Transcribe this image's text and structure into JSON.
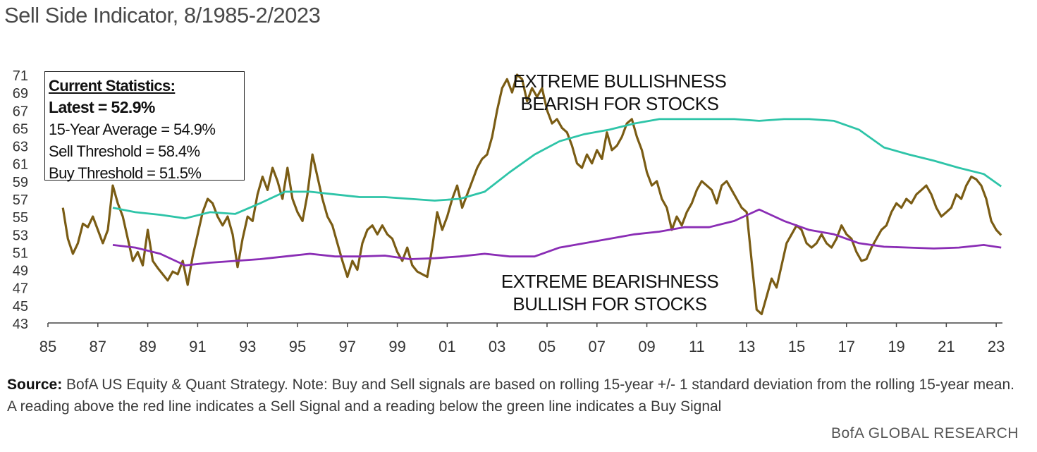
{
  "chart_data": {
    "type": "line",
    "title": "Sell Side Indicator, 8/1985-2/2023",
    "xlabel": "",
    "ylabel": "",
    "xlim": [
      1985.0,
      2023.25
    ],
    "ylim": [
      43,
      71
    ],
    "x_ticks": [
      "85",
      "87",
      "89",
      "91",
      "93",
      "95",
      "97",
      "99",
      "01",
      "03",
      "05",
      "07",
      "09",
      "11",
      "13",
      "15",
      "17",
      "19",
      "21",
      "23"
    ],
    "y_ticks": [
      "71",
      "69",
      "67",
      "65",
      "63",
      "61",
      "59",
      "57",
      "55",
      "53",
      "51",
      "49",
      "47",
      "45",
      "43"
    ],
    "grid": false,
    "series": [
      {
        "color": "#7a5c14",
        "points": [
          [
            1985.6,
            56.0
          ],
          [
            1985.8,
            52.5
          ],
          [
            1986.0,
            50.8
          ],
          [
            1986.2,
            52.0
          ],
          [
            1986.4,
            54.2
          ],
          [
            1986.6,
            53.8
          ],
          [
            1986.8,
            55.0
          ],
          [
            1987.0,
            53.5
          ],
          [
            1987.2,
            52.0
          ],
          [
            1987.4,
            53.5
          ],
          [
            1987.6,
            58.5
          ],
          [
            1987.8,
            56.5
          ],
          [
            1988.0,
            55.0
          ],
          [
            1988.2,
            52.5
          ],
          [
            1988.4,
            50.0
          ],
          [
            1988.6,
            51.0
          ],
          [
            1988.8,
            49.5
          ],
          [
            1989.0,
            53.5
          ],
          [
            1989.2,
            50.0
          ],
          [
            1989.4,
            49.2
          ],
          [
            1989.6,
            48.5
          ],
          [
            1989.8,
            47.8
          ],
          [
            1990.0,
            48.8
          ],
          [
            1990.2,
            48.5
          ],
          [
            1990.4,
            50.0
          ],
          [
            1990.6,
            47.3
          ],
          [
            1990.8,
            50.5
          ],
          [
            1991.0,
            53.0
          ],
          [
            1991.2,
            55.5
          ],
          [
            1991.4,
            57.0
          ],
          [
            1991.6,
            56.5
          ],
          [
            1991.8,
            55.0
          ],
          [
            1992.0,
            54.0
          ],
          [
            1992.2,
            55.0
          ],
          [
            1992.4,
            53.0
          ],
          [
            1992.6,
            49.3
          ],
          [
            1992.8,
            52.5
          ],
          [
            1993.0,
            55.0
          ],
          [
            1993.2,
            54.5
          ],
          [
            1993.4,
            57.5
          ],
          [
            1993.6,
            59.5
          ],
          [
            1993.8,
            58.0
          ],
          [
            1994.0,
            60.5
          ],
          [
            1994.2,
            59.0
          ],
          [
            1994.4,
            57.0
          ],
          [
            1994.6,
            60.5
          ],
          [
            1994.8,
            57.0
          ],
          [
            1995.0,
            55.5
          ],
          [
            1995.2,
            54.5
          ],
          [
            1995.4,
            57.5
          ],
          [
            1995.6,
            62.0
          ],
          [
            1995.8,
            59.5
          ],
          [
            1996.0,
            57.0
          ],
          [
            1996.2,
            55.0
          ],
          [
            1996.4,
            54.0
          ],
          [
            1996.6,
            52.0
          ],
          [
            1996.8,
            50.0
          ],
          [
            1997.0,
            48.2
          ],
          [
            1997.2,
            50.0
          ],
          [
            1997.4,
            49.0
          ],
          [
            1997.6,
            52.0
          ],
          [
            1997.8,
            53.5
          ],
          [
            1998.0,
            54.0
          ],
          [
            1998.2,
            53.0
          ],
          [
            1998.4,
            54.0
          ],
          [
            1998.6,
            53.0
          ],
          [
            1998.8,
            52.5
          ],
          [
            1999.0,
            51.0
          ],
          [
            1999.2,
            50.0
          ],
          [
            1999.4,
            51.5
          ],
          [
            1999.6,
            49.5
          ],
          [
            1999.8,
            48.8
          ],
          [
            2000.0,
            48.5
          ],
          [
            2000.2,
            48.2
          ],
          [
            2000.4,
            51.5
          ],
          [
            2000.6,
            55.5
          ],
          [
            2000.8,
            53.5
          ],
          [
            2001.0,
            55.0
          ],
          [
            2001.2,
            57.0
          ],
          [
            2001.4,
            58.5
          ],
          [
            2001.6,
            56.0
          ],
          [
            2001.8,
            57.5
          ],
          [
            2002.0,
            59.0
          ],
          [
            2002.2,
            60.5
          ],
          [
            2002.4,
            61.5
          ],
          [
            2002.6,
            62.0
          ],
          [
            2002.8,
            64.0
          ],
          [
            2003.0,
            67.0
          ],
          [
            2003.2,
            69.5
          ],
          [
            2003.4,
            70.5
          ],
          [
            2003.6,
            69.0
          ],
          [
            2003.8,
            71.0
          ],
          [
            2004.0,
            70.5
          ],
          [
            2004.2,
            68.0
          ],
          [
            2004.4,
            69.5
          ],
          [
            2004.6,
            68.5
          ],
          [
            2004.8,
            69.5
          ],
          [
            2005.0,
            67.0
          ],
          [
            2005.2,
            65.5
          ],
          [
            2005.4,
            66.0
          ],
          [
            2005.6,
            65.0
          ],
          [
            2005.8,
            64.5
          ],
          [
            2006.0,
            63.0
          ],
          [
            2006.2,
            61.0
          ],
          [
            2006.4,
            60.5
          ],
          [
            2006.6,
            62.0
          ],
          [
            2006.8,
            61.0
          ],
          [
            2007.0,
            62.5
          ],
          [
            2007.2,
            61.5
          ],
          [
            2007.4,
            64.5
          ],
          [
            2007.6,
            62.5
          ],
          [
            2007.8,
            63.0
          ],
          [
            2008.0,
            64.0
          ],
          [
            2008.2,
            65.5
          ],
          [
            2008.4,
            66.0
          ],
          [
            2008.6,
            64.0
          ],
          [
            2008.8,
            62.5
          ],
          [
            2009.0,
            60.0
          ],
          [
            2009.2,
            58.5
          ],
          [
            2009.4,
            59.0
          ],
          [
            2009.6,
            57.0
          ],
          [
            2009.8,
            56.0
          ],
          [
            2010.0,
            53.5
          ],
          [
            2010.2,
            55.0
          ],
          [
            2010.4,
            54.0
          ],
          [
            2010.6,
            55.5
          ],
          [
            2010.8,
            56.5
          ],
          [
            2011.0,
            58.0
          ],
          [
            2011.2,
            59.0
          ],
          [
            2011.4,
            58.5
          ],
          [
            2011.6,
            58.0
          ],
          [
            2011.8,
            56.5
          ],
          [
            2012.0,
            58.5
          ],
          [
            2012.2,
            59.0
          ],
          [
            2012.4,
            58.0
          ],
          [
            2012.6,
            57.0
          ],
          [
            2012.8,
            56.0
          ],
          [
            2013.0,
            55.5
          ],
          [
            2013.2,
            50.0
          ],
          [
            2013.4,
            44.5
          ],
          [
            2013.6,
            44.0
          ],
          [
            2013.8,
            46.0
          ],
          [
            2014.0,
            48.0
          ],
          [
            2014.2,
            47.0
          ],
          [
            2014.4,
            49.5
          ],
          [
            2014.6,
            52.0
          ],
          [
            2014.8,
            53.0
          ],
          [
            2015.0,
            54.0
          ],
          [
            2015.2,
            53.5
          ],
          [
            2015.4,
            52.0
          ],
          [
            2015.6,
            51.5
          ],
          [
            2015.8,
            52.0
          ],
          [
            2016.0,
            53.0
          ],
          [
            2016.2,
            52.0
          ],
          [
            2016.4,
            51.5
          ],
          [
            2016.6,
            52.5
          ],
          [
            2016.8,
            54.0
          ],
          [
            2017.0,
            53.0
          ],
          [
            2017.2,
            52.5
          ],
          [
            2017.4,
            51.0
          ],
          [
            2017.6,
            50.0
          ],
          [
            2017.8,
            50.2
          ],
          [
            2018.0,
            51.5
          ],
          [
            2018.2,
            52.5
          ],
          [
            2018.4,
            53.5
          ],
          [
            2018.6,
            54.0
          ],
          [
            2018.8,
            55.5
          ],
          [
            2019.0,
            56.5
          ],
          [
            2019.2,
            56.0
          ],
          [
            2019.4,
            57.0
          ],
          [
            2019.6,
            56.5
          ],
          [
            2019.8,
            57.5
          ],
          [
            2020.0,
            58.0
          ],
          [
            2020.2,
            58.5
          ],
          [
            2020.4,
            57.5
          ],
          [
            2020.6,
            56.0
          ],
          [
            2020.8,
            55.0
          ],
          [
            2021.0,
            55.5
          ],
          [
            2021.2,
            56.0
          ],
          [
            2021.4,
            57.5
          ],
          [
            2021.6,
            57.0
          ],
          [
            2021.8,
            58.5
          ],
          [
            2022.0,
            59.5
          ],
          [
            2022.2,
            59.2
          ],
          [
            2022.4,
            58.5
          ],
          [
            2022.6,
            57.0
          ],
          [
            2022.8,
            54.5
          ],
          [
            2023.0,
            53.5
          ],
          [
            2023.2,
            52.9
          ]
        ]
      },
      {
        "color": "#2ec4a8",
        "points": [
          [
            1987.6,
            56.0
          ],
          [
            1988.5,
            55.5
          ],
          [
            1989.5,
            55.2
          ],
          [
            1990.5,
            54.8
          ],
          [
            1991.5,
            55.5
          ],
          [
            1992.5,
            55.3
          ],
          [
            1993.5,
            56.5
          ],
          [
            1994.5,
            57.8
          ],
          [
            1995.5,
            57.8
          ],
          [
            1996.5,
            57.5
          ],
          [
            1997.5,
            57.2
          ],
          [
            1998.5,
            57.2
          ],
          [
            1999.5,
            57.0
          ],
          [
            2000.5,
            56.8
          ],
          [
            2001.5,
            57.0
          ],
          [
            2002.5,
            57.8
          ],
          [
            2003.5,
            60.0
          ],
          [
            2004.5,
            62.0
          ],
          [
            2005.5,
            63.5
          ],
          [
            2006.5,
            64.3
          ],
          [
            2007.5,
            64.8
          ],
          [
            2008.5,
            65.5
          ],
          [
            2009.5,
            66.0
          ],
          [
            2010.5,
            66.0
          ],
          [
            2011.5,
            66.0
          ],
          [
            2012.5,
            66.0
          ],
          [
            2013.5,
            65.8
          ],
          [
            2014.5,
            66.0
          ],
          [
            2015.5,
            66.0
          ],
          [
            2016.5,
            65.8
          ],
          [
            2017.5,
            64.8
          ],
          [
            2018.5,
            62.8
          ],
          [
            2019.5,
            62.0
          ],
          [
            2020.5,
            61.3
          ],
          [
            2021.5,
            60.5
          ],
          [
            2022.5,
            59.8
          ],
          [
            2023.2,
            58.4
          ]
        ]
      },
      {
        "color": "#8a2db5",
        "points": [
          [
            1987.6,
            51.8
          ],
          [
            1988.5,
            51.5
          ],
          [
            1989.5,
            50.8
          ],
          [
            1990.5,
            49.5
          ],
          [
            1991.5,
            49.8
          ],
          [
            1992.5,
            50.0
          ],
          [
            1993.5,
            50.2
          ],
          [
            1994.5,
            50.5
          ],
          [
            1995.5,
            50.8
          ],
          [
            1996.5,
            50.5
          ],
          [
            1997.5,
            50.5
          ],
          [
            1998.5,
            50.6
          ],
          [
            1999.5,
            50.2
          ],
          [
            2000.5,
            50.3
          ],
          [
            2001.5,
            50.5
          ],
          [
            2002.5,
            50.8
          ],
          [
            2003.5,
            50.5
          ],
          [
            2004.5,
            50.5
          ],
          [
            2005.5,
            51.5
          ],
          [
            2006.5,
            52.0
          ],
          [
            2007.5,
            52.5
          ],
          [
            2008.5,
            53.0
          ],
          [
            2009.5,
            53.3
          ],
          [
            2010.5,
            53.8
          ],
          [
            2011.5,
            53.8
          ],
          [
            2012.5,
            54.5
          ],
          [
            2013.5,
            55.8
          ],
          [
            2014.5,
            54.5
          ],
          [
            2015.5,
            53.5
          ],
          [
            2016.5,
            53.0
          ],
          [
            2017.5,
            52.0
          ],
          [
            2018.5,
            51.6
          ],
          [
            2019.5,
            51.5
          ],
          [
            2020.5,
            51.4
          ],
          [
            2021.5,
            51.5
          ],
          [
            2022.5,
            51.8
          ],
          [
            2023.2,
            51.5
          ]
        ]
      }
    ]
  },
  "stats": {
    "heading": "Current Statistics:",
    "latest": "Latest = 52.9%",
    "avg": "15-Year Average = 54.9%",
    "sell": "Sell Threshold = 58.4%",
    "buy": "Buy Threshold = 51.5%"
  },
  "annotations": {
    "bull_1": "EXTREME BULLISHNESS",
    "bull_2": "BEARISH FOR STOCKS",
    "bear_1": "EXTREME BEARISHNESS",
    "bear_2": "BULLISH FOR STOCKS"
  },
  "footer": {
    "source_label": "Source:",
    "source_text": " BofA US Equity & Quant Strategy. Note: Buy and Sell signals are based on rolling 15-year +/- 1 standard deviation from the rolling 15-year mean. A reading above the red line indicates a Sell Signal and a reading below the green line indicates a Buy Signal",
    "brand": "BofA GLOBAL RESEARCH"
  }
}
